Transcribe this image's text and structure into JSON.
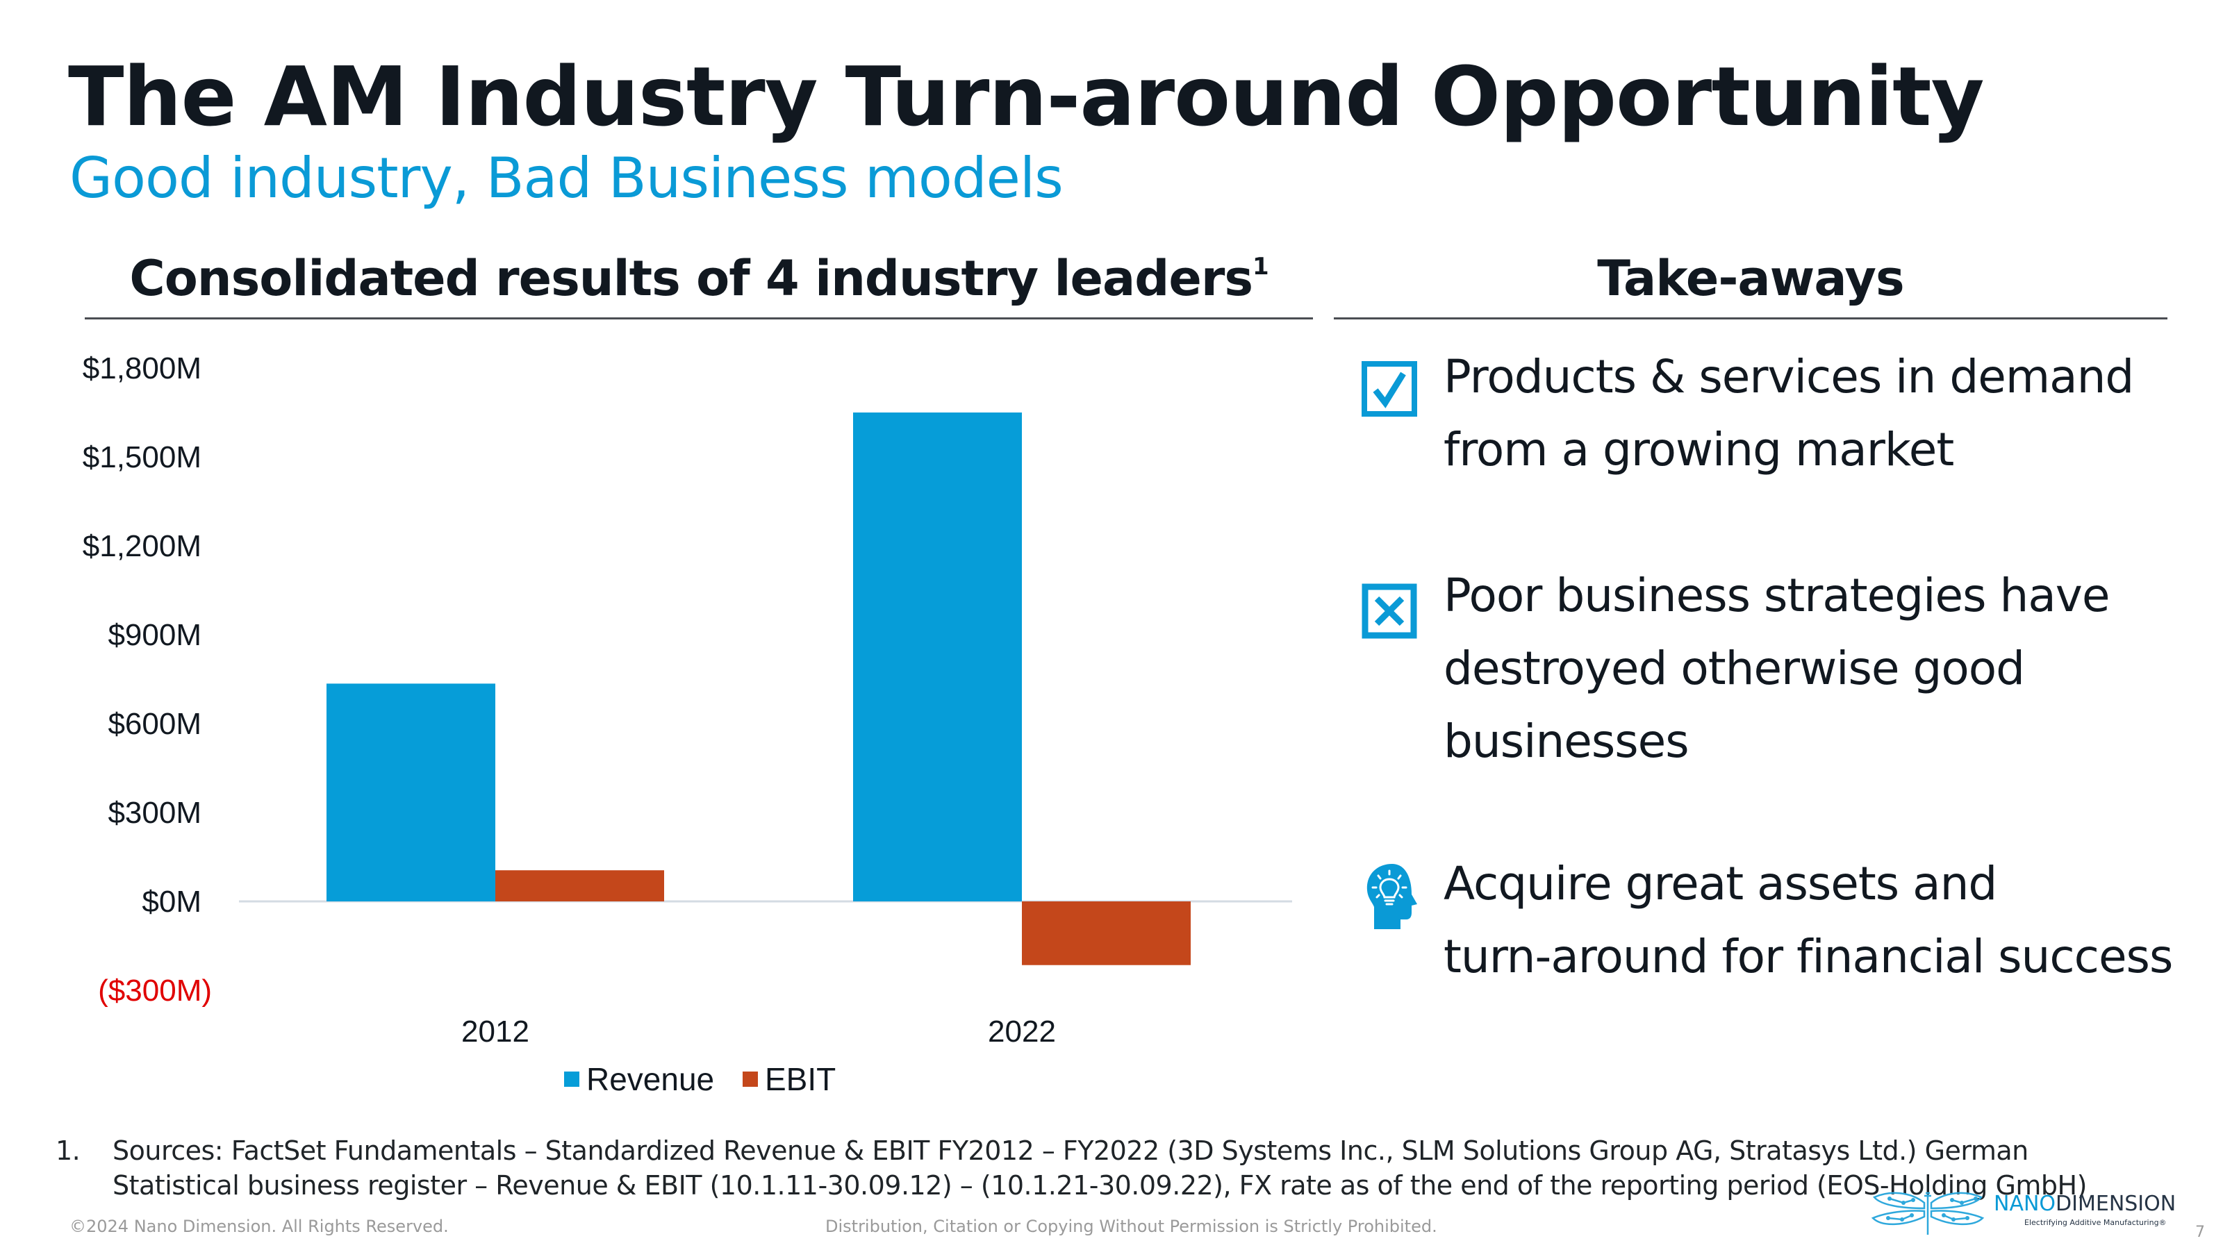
{
  "header": {
    "title": "The AM Industry Turn-around Opportunity",
    "subtitle": "Good industry, Bad Business models"
  },
  "left_section": {
    "heading": "Consolidated results of 4 industry leaders",
    "heading_footnote_ref": "1"
  },
  "right_section": {
    "heading": "Take-aways",
    "items": [
      {
        "icon": "checkbox-check-icon",
        "lines": [
          "Products & services in demand",
          "from a growing market"
        ]
      },
      {
        "icon": "checkbox-x-icon",
        "lines": [
          "Poor business strategies have",
          "destroyed otherwise good",
          "businesses"
        ]
      },
      {
        "icon": "head-lightbulb-icon",
        "lines": [
          "Acquire great assets and",
          "turn-around for financial success"
        ]
      }
    ]
  },
  "colors": {
    "accent": "#0a9ad6",
    "revenue": "#069dd8",
    "ebit": "#c4471b",
    "negative_tick": "#e00000",
    "title": "#111820"
  },
  "chart_data": {
    "type": "bar",
    "title": "Consolidated results of 4 industry leaders",
    "xlabel": "",
    "ylabel": "",
    "categories": [
      "2012",
      "2022"
    ],
    "series": [
      {
        "name": "Revenue",
        "values": [
          735,
          1650
        ]
      },
      {
        "name": "EBIT",
        "values": [
          105,
          -215
        ]
      }
    ],
    "unit": "USD millions",
    "ylim": [
      -300,
      1800
    ],
    "yticks": [
      1800,
      1500,
      1200,
      900,
      600,
      300,
      0,
      -300
    ],
    "ytick_labels": [
      "$1,800M",
      "$1,500M",
      "$1,200M",
      "$900M",
      "$600M",
      "$300M",
      "$0M",
      "($300M)"
    ],
    "grid": false,
    "legend": {
      "position": "bottom",
      "entries": [
        "Revenue",
        "EBIT"
      ]
    }
  },
  "footnote": {
    "number": "1.",
    "text": "Sources: FactSet Fundamentals – Standardized Revenue & EBIT FY2012 – FY2022 (3D Systems Inc., SLM Solutions Group AG, Stratasys Ltd.) German Statistical business register – Revenue & EBIT (10.1.11-30.09.12) – (10.1.21-30.09.22), FX rate as of the end of the reporting period (EOS-Holding GmbH)"
  },
  "footer": {
    "copyright": "©2024 Nano Dimension. All Rights Reserved.",
    "distribution": "Distribution, Citation or Copying Without Permission is Strictly Prohibited.",
    "page_number": "7",
    "logo": {
      "name_part1": "NANO",
      "name_part2": "DIMENSION",
      "tagline": "Electrifying Additive Manufacturing®"
    }
  }
}
